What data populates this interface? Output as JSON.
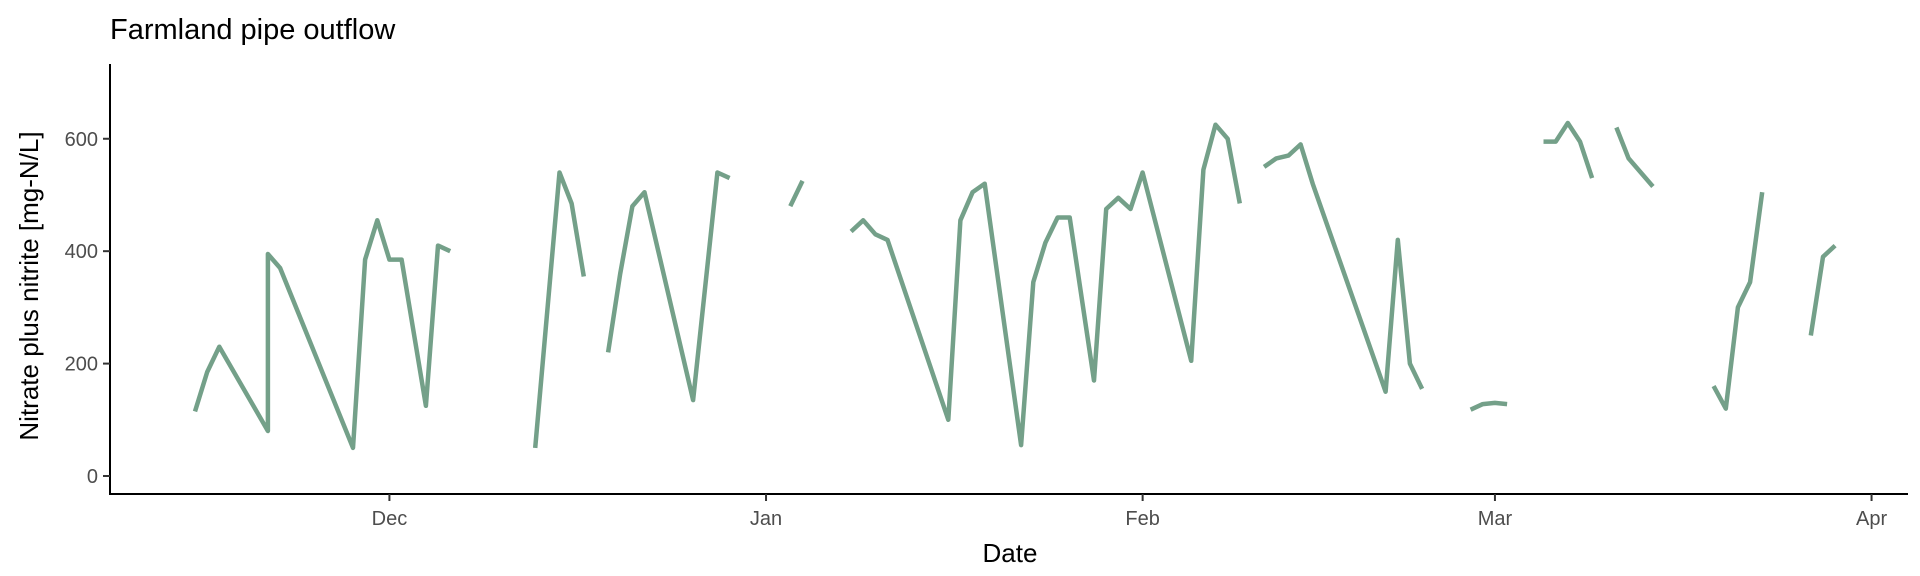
{
  "chart_data": {
    "type": "line",
    "title": "Farmland pipe outflow",
    "xlabel": "Date",
    "ylabel": "Nitrate plus nitrite [mg-N/L]",
    "color": "#74a089",
    "grid": false,
    "x_ticks": [
      {
        "label": "Dec",
        "date": "2023-12-01"
      },
      {
        "label": "Jan",
        "date": "2024-01-01"
      },
      {
        "label": "Feb",
        "date": "2024-02-01"
      },
      {
        "label": "Mar",
        "date": "2024-03-01"
      },
      {
        "label": "Apr",
        "date": "2024-04-01"
      }
    ],
    "y_ticks": [
      0,
      200,
      400,
      600
    ],
    "xlim": [
      "2023-11-08",
      "2024-04-04"
    ],
    "ylim": [
      -32,
      733
    ],
    "segments": [
      {
        "x": [
          "2023-11-15",
          "2023-11-16",
          "2023-11-17",
          "2023-11-21",
          "2023-11-21",
          "2023-11-22",
          "2023-11-28",
          "2023-11-29",
          "2023-11-30",
          "2023-12-01",
          "2023-12-02",
          "2023-12-04",
          "2023-12-05",
          "2023-12-06"
        ],
        "y": [
          115,
          185,
          230,
          80,
          395,
          370,
          50,
          385,
          455,
          385,
          385,
          125,
          410,
          400
        ]
      },
      {
        "x": [
          "2023-12-13",
          "2023-12-15",
          "2023-12-16",
          "2023-12-17"
        ],
        "y": [
          50,
          540,
          485,
          355
        ]
      },
      {
        "x": [
          "2023-12-19",
          "2023-12-20",
          "2023-12-21",
          "2023-12-22",
          "2023-12-26",
          "2023-12-28",
          "2023-12-29"
        ],
        "y": [
          220,
          360,
          480,
          505,
          135,
          540,
          530
        ]
      },
      {
        "x": [
          "2024-01-03",
          "2024-01-04"
        ],
        "y": [
          480,
          525
        ]
      },
      {
        "x": [
          "2024-01-08",
          "2024-01-09",
          "2024-01-10",
          "2024-01-11",
          "2024-01-16",
          "2024-01-17",
          "2024-01-18",
          "2024-01-19",
          "2024-01-22",
          "2024-01-23",
          "2024-01-24",
          "2024-01-25",
          "2024-01-26",
          "2024-01-28",
          "2024-01-29",
          "2024-01-30",
          "2024-01-31",
          "2024-02-01",
          "2024-02-05",
          "2024-02-06",
          "2024-02-07",
          "2024-02-08",
          "2024-02-09"
        ],
        "y": [
          435,
          455,
          430,
          420,
          100,
          455,
          505,
          520,
          55,
          345,
          415,
          460,
          460,
          170,
          475,
          495,
          475,
          540,
          205,
          545,
          625,
          600,
          485
        ]
      },
      {
        "x": [
          "2024-02-11",
          "2024-02-12",
          "2024-02-13",
          "2024-02-14",
          "2024-02-15",
          "2024-02-21",
          "2024-02-22",
          "2024-02-23",
          "2024-02-24"
        ],
        "y": [
          550,
          565,
          570,
          590,
          520,
          150,
          420,
          200,
          155
        ]
      },
      {
        "x": [
          "2024-02-28",
          "2024-02-29",
          "2024-03-01",
          "2024-03-02"
        ],
        "y": [
          118,
          128,
          130,
          128
        ]
      },
      {
        "x": [
          "2024-03-05",
          "2024-03-06",
          "2024-03-07",
          "2024-03-08",
          "2024-03-09"
        ],
        "y": [
          595,
          595,
          628,
          595,
          530
        ]
      },
      {
        "x": [
          "2024-03-11",
          "2024-03-12",
          "2024-03-14"
        ],
        "y": [
          620,
          565,
          515
        ]
      },
      {
        "x": [
          "2024-03-19",
          "2024-03-20",
          "2024-03-21",
          "2024-03-22",
          "2024-03-23"
        ],
        "y": [
          160,
          120,
          300,
          345,
          505
        ]
      },
      {
        "x": [
          "2024-03-27",
          "2024-03-28",
          "2024-03-29"
        ],
        "y": [
          250,
          390,
          410
        ]
      }
    ]
  }
}
